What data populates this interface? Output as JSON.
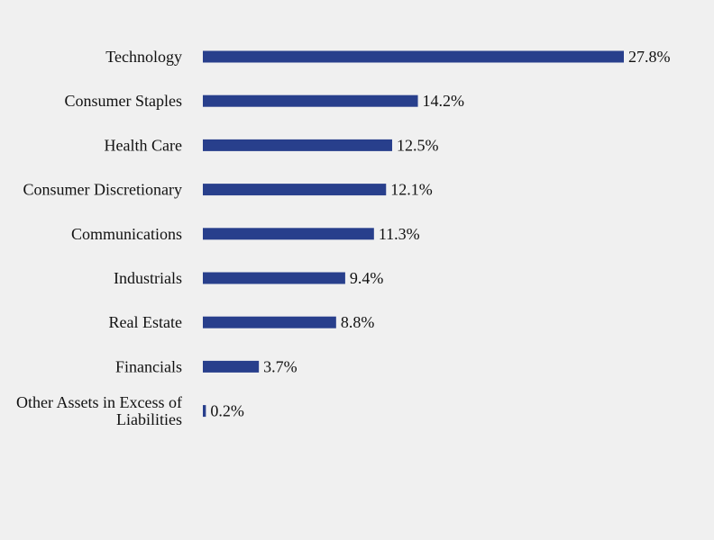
{
  "chart_data": {
    "type": "bar",
    "orientation": "horizontal",
    "title": "",
    "xlabel": "",
    "ylabel": "",
    "categories": [
      "Technology",
      "Consumer Staples",
      "Health Care",
      "Consumer Discretionary",
      "Communications",
      "Industrials",
      "Real Estate",
      "Financials",
      "Other Assets in Excess of Liabilities"
    ],
    "values": [
      27.8,
      14.2,
      12.5,
      12.1,
      11.3,
      9.4,
      8.8,
      3.7,
      0.2
    ],
    "value_labels": [
      "27.8%",
      "14.2%",
      "12.5%",
      "12.1%",
      "11.3%",
      "9.4%",
      "8.8%",
      "3.7%",
      "0.2%"
    ],
    "xlim": [
      0,
      27.8
    ],
    "grid": false,
    "legend": "none",
    "bar_color": "#283f8c"
  }
}
